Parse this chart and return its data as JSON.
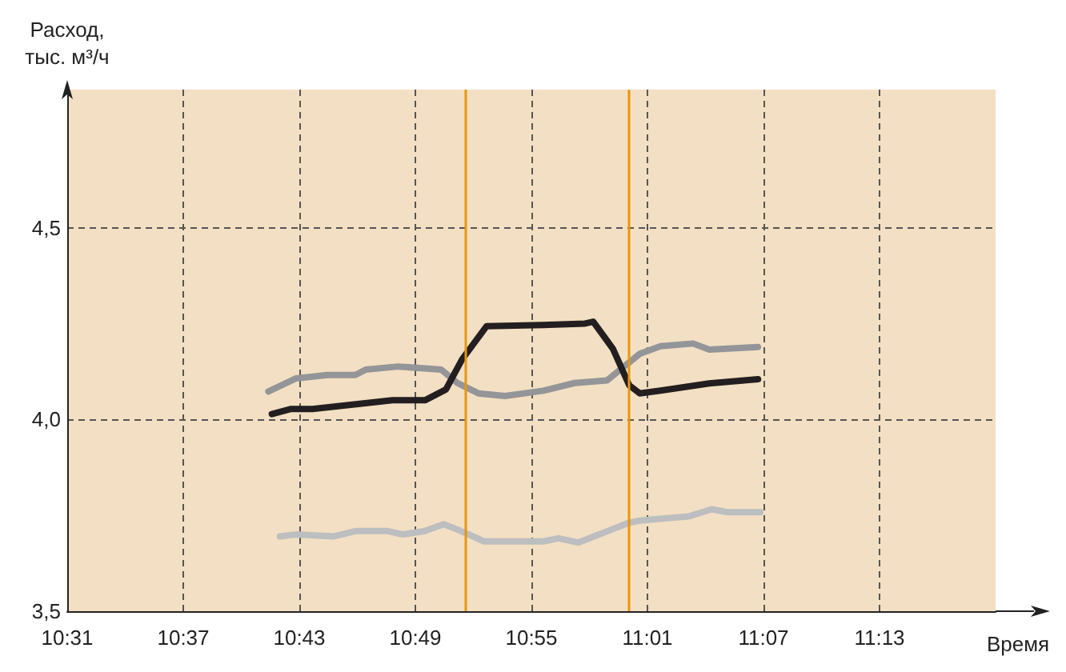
{
  "chart_data": {
    "type": "line",
    "ylabel": "Расход,\nтыс. м³/ч",
    "xlabel": "Время",
    "xlim": [
      10.5167,
      11.3167
    ],
    "xticks": [
      {
        "value": 10.5167,
        "label": "10:31"
      },
      {
        "value": 10.6167,
        "label": "10:37"
      },
      {
        "value": 10.7167,
        "label": "10:43"
      },
      {
        "value": 10.8167,
        "label": "10:49"
      },
      {
        "value": 10.9167,
        "label": "10:55"
      },
      {
        "value": 11.0167,
        "label": "11:01"
      },
      {
        "value": 11.1167,
        "label": "11:07"
      },
      {
        "value": 11.2167,
        "label": "11:13"
      }
    ],
    "ylim": [
      3.5,
      4.86
    ],
    "yticks": [
      {
        "value": 3.5,
        "label": "3,5"
      },
      {
        "value": 4.0,
        "label": "4,0"
      },
      {
        "value": 4.5,
        "label": "4,5"
      }
    ],
    "grid": true,
    "marker": "none",
    "line_style": "solid",
    "series": [
      {
        "color": "#939598",
        "x": [
          10.69,
          10.714,
          10.741,
          10.765,
          10.774,
          10.802,
          10.839,
          10.853,
          10.871,
          10.894,
          10.927,
          10.954,
          10.982,
          11.01,
          11.028,
          11.056,
          11.07,
          11.112
        ],
        "values": [
          4.073,
          4.107,
          4.116,
          4.116,
          4.13,
          4.138,
          4.13,
          4.095,
          4.068,
          4.061,
          4.075,
          4.095,
          4.102,
          4.171,
          4.191,
          4.198,
          4.182,
          4.189
        ]
      },
      {
        "color": "#231f20",
        "x": [
          10.693,
          10.709,
          10.728,
          10.797,
          10.825,
          10.843,
          10.857,
          10.878,
          10.927,
          10.963,
          10.97,
          10.987,
          11.001,
          11.01,
          11.028,
          11.07,
          11.112
        ],
        "values": [
          4.014,
          4.027,
          4.027,
          4.05,
          4.05,
          4.078,
          4.157,
          4.243,
          4.246,
          4.25,
          4.255,
          4.184,
          4.089,
          4.068,
          4.075,
          4.094,
          4.105
        ]
      },
      {
        "color": "#bcbec0",
        "x": [
          10.7,
          10.714,
          10.746,
          10.765,
          10.793,
          10.806,
          10.825,
          10.841,
          10.853,
          10.876,
          10.927,
          10.94,
          10.957,
          11.001,
          11.01,
          11.052,
          11.072,
          11.086,
          11.114
        ],
        "values": [
          3.695,
          3.7,
          3.695,
          3.709,
          3.709,
          3.7,
          3.709,
          3.727,
          3.713,
          3.682,
          3.682,
          3.69,
          3.679,
          3.731,
          3.736,
          3.747,
          3.766,
          3.758,
          3.758
        ]
      }
    ],
    "ref_lines": [
      {
        "axis": "x",
        "value": 10.858,
        "color": "#e8960c"
      },
      {
        "axis": "x",
        "value": 11.0,
        "color": "#e8960c"
      }
    ]
  }
}
